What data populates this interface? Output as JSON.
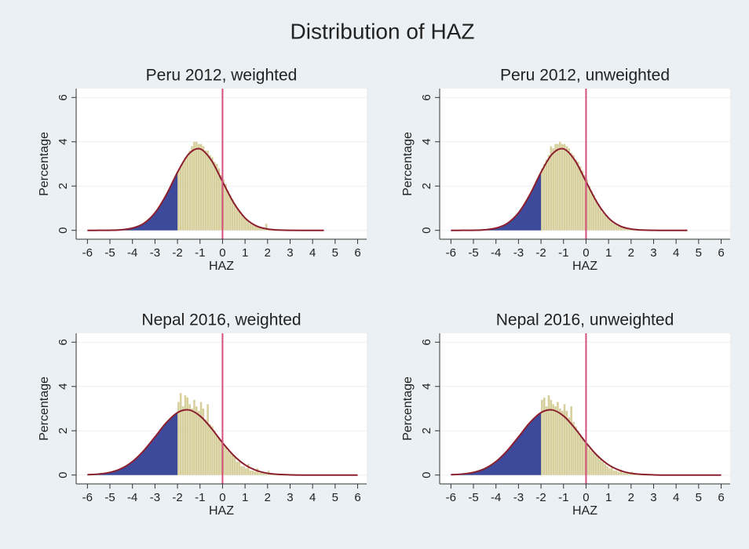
{
  "title": "Distribution of HAZ",
  "chart_data": [
    {
      "type": "histogram",
      "title": "Peru 2012, weighted",
      "xlabel": "HAZ",
      "ylabel": "Percentage",
      "xlim": [
        -6.5,
        6.4
      ],
      "ylim": [
        -0.4,
        6.4
      ],
      "xticks": [
        -6,
        -5,
        -4,
        -3,
        -2,
        -1,
        0,
        1,
        2,
        3,
        4,
        5,
        6
      ],
      "yticks": [
        0,
        2,
        4,
        6
      ],
      "grid": true,
      "color": "#d6cf9c",
      "bins": [
        -2,
        -1.9,
        -1.8,
        -1.7,
        -1.6,
        -1.5,
        -1.4,
        -1.3,
        -1.2,
        -1.1,
        -1,
        -0.9,
        -0.8,
        -0.7,
        -0.6,
        -0.5,
        -0.4,
        -0.3,
        -0.2,
        -0.1,
        0,
        0.1,
        0.2,
        0.3,
        0.4,
        0.5,
        0.6,
        0.7,
        0.8,
        0.9,
        1,
        1.1,
        1.2,
        1.3,
        1.4,
        1.5,
        1.6,
        1.7,
        1.8,
        1.9,
        2,
        2.1,
        2.2,
        2.3,
        2.4,
        2.5,
        2.6
      ],
      "values": [
        2.7,
        2.9,
        3.1,
        3.3,
        3.4,
        3.6,
        3.8,
        4.0,
        4.0,
        3.9,
        3.9,
        3.8,
        3.6,
        3.6,
        3.4,
        3.3,
        3.1,
        3.0,
        2.8,
        2.5,
        2.3,
        2.1,
        1.8,
        1.6,
        1.4,
        1.2,
        1.0,
        0.9,
        0.7,
        0.6,
        0.5,
        0.4,
        0.3,
        0.25,
        0.2,
        0.15,
        0.12,
        0.1,
        0.08,
        0.3,
        0.05,
        0.04,
        0.03,
        0.02,
        0.02,
        0.01
      ],
      "curve": {
        "color": "#8b1f2e",
        "x": [
          -6,
          -5.5,
          -5,
          -4.5,
          -4,
          -3.5,
          -3,
          -2.5,
          -2,
          -1.5,
          -1,
          -0.5,
          0,
          0.5,
          1,
          1.5,
          2,
          2.5,
          3,
          3.5,
          4,
          4.5
        ],
        "values": [
          0,
          0.001,
          0.005,
          0.026,
          0.1,
          0.31,
          0.79,
          1.6,
          2.62,
          3.45,
          3.68,
          3.17,
          2.2,
          1.24,
          0.56,
          0.2,
          0.06,
          0.014,
          0.003,
          0,
          0,
          0
        ]
      },
      "shade_below": -2,
      "shade_color": "#3d4a9c",
      "ref_line": 0,
      "ref_color": "#d4507c"
    },
    {
      "type": "histogram",
      "title": "Peru 2012, unweighted",
      "xlabel": "HAZ",
      "ylabel": "Percentage",
      "xlim": [
        -6.5,
        6.4
      ],
      "ylim": [
        -0.4,
        6.4
      ],
      "xticks": [
        -6,
        -5,
        -4,
        -3,
        -2,
        -1,
        0,
        1,
        2,
        3,
        4,
        5,
        6
      ],
      "yticks": [
        0,
        2,
        4,
        6
      ],
      "grid": true,
      "color": "#d6cf9c",
      "bins": [
        -2,
        -1.9,
        -1.8,
        -1.7,
        -1.6,
        -1.5,
        -1.4,
        -1.3,
        -1.2,
        -1.1,
        -1,
        -0.9,
        -0.8,
        -0.7,
        -0.6,
        -0.5,
        -0.4,
        -0.3,
        -0.2,
        -0.1,
        0,
        0.1,
        0.2,
        0.3,
        0.4,
        0.5,
        0.6,
        0.7,
        0.8,
        0.9,
        1,
        1.1,
        1.2,
        1.3,
        1.4,
        1.5,
        1.6,
        1.7,
        1.8,
        1.9,
        2,
        2.1,
        2.2,
        2.3,
        2.4,
        2.5,
        2.6
      ],
      "values": [
        2.8,
        3.0,
        3.2,
        3.4,
        3.8,
        3.7,
        3.9,
        3.9,
        4.0,
        3.9,
        3.9,
        3.8,
        3.7,
        3.5,
        3.4,
        3.2,
        3.1,
        2.9,
        2.7,
        2.5,
        2.3,
        2.0,
        1.8,
        1.6,
        1.4,
        1.2,
        1.0,
        0.8,
        0.7,
        0.6,
        0.5,
        0.4,
        0.3,
        0.25,
        0.2,
        0.15,
        0.12,
        0.1,
        0.08,
        0.06,
        0.05,
        0.04,
        0.03,
        0.02,
        0.02,
        0.01
      ],
      "curve": {
        "color": "#8b1f2e",
        "x": [
          -6,
          -5.5,
          -5,
          -4.5,
          -4,
          -3.5,
          -3,
          -2.5,
          -2,
          -1.5,
          -1,
          -0.5,
          0,
          0.5,
          1,
          1.5,
          2,
          2.5,
          3,
          3.5,
          4,
          4.5
        ],
        "values": [
          0,
          0.001,
          0.005,
          0.026,
          0.1,
          0.31,
          0.79,
          1.6,
          2.62,
          3.45,
          3.68,
          3.17,
          2.2,
          1.24,
          0.56,
          0.2,
          0.06,
          0.014,
          0.003,
          0,
          0,
          0
        ]
      },
      "shade_below": -2,
      "shade_color": "#3d4a9c",
      "ref_line": 0,
      "ref_color": "#d4507c"
    },
    {
      "type": "histogram",
      "title": "Nepal 2016, weighted",
      "xlabel": "HAZ",
      "ylabel": "Percentage",
      "xlim": [
        -6.5,
        6.4
      ],
      "ylim": [
        -0.4,
        6.4
      ],
      "xticks": [
        -6,
        -5,
        -4,
        -3,
        -2,
        -1,
        0,
        1,
        2,
        3,
        4,
        5,
        6
      ],
      "yticks": [
        0,
        2,
        4,
        6
      ],
      "grid": true,
      "color": "#d6cf9c",
      "bins": [
        -2,
        -1.9,
        -1.8,
        -1.7,
        -1.6,
        -1.5,
        -1.4,
        -1.3,
        -1.2,
        -1.1,
        -1,
        -0.9,
        -0.8,
        -0.7,
        -0.6,
        -0.5,
        -0.4,
        -0.3,
        -0.2,
        -0.1,
        0,
        0.1,
        0.2,
        0.3,
        0.4,
        0.5,
        0.6,
        0.7,
        0.8,
        0.9,
        1,
        1.1,
        1.2,
        1.3,
        1.4,
        1.5,
        1.6,
        1.7,
        1.8,
        1.9,
        2,
        2.1,
        2.2,
        2.3,
        2.4,
        2.5,
        2.6,
        2.7,
        2.8,
        2.9,
        3
      ],
      "values": [
        3.3,
        3.7,
        3.1,
        3.6,
        3.5,
        3.2,
        3.0,
        3.4,
        3.1,
        2.9,
        3.3,
        3.0,
        2.5,
        3.2,
        2.3,
        2.2,
        2.0,
        1.8,
        1.7,
        1.5,
        1.4,
        1.3,
        1.1,
        1.0,
        0.9,
        0.8,
        0.6,
        0.6,
        0.4,
        0.4,
        0.3,
        0.5,
        0.2,
        0.2,
        0.15,
        0.3,
        0.1,
        0.1,
        0.08,
        0.06,
        0.2,
        0.05,
        0.04,
        0.03,
        0.03,
        0.02,
        0.02,
        0.01,
        0.01,
        0.01
      ],
      "curve": {
        "color": "#8b1f2e",
        "x": [
          -6,
          -5.5,
          -5,
          -4.5,
          -4,
          -3.5,
          -3,
          -2.5,
          -2,
          -1.5,
          -1,
          -0.5,
          0,
          0.5,
          1,
          1.5,
          2,
          2.5,
          3,
          3.5,
          4,
          4.5,
          5,
          5.5,
          6
        ],
        "values": [
          0.015,
          0.045,
          0.12,
          0.29,
          0.61,
          1.1,
          1.72,
          2.36,
          2.82,
          2.94,
          2.67,
          2.12,
          1.46,
          0.88,
          0.46,
          0.21,
          0.08,
          0.03,
          0.009,
          0,
          0,
          0,
          0,
          0,
          0
        ]
      },
      "shade_below": -2,
      "shade_color": "#3d4a9c",
      "ref_line": 0,
      "ref_color": "#d4507c"
    },
    {
      "type": "histogram",
      "title": "Nepal 2016, unweighted",
      "xlabel": "HAZ",
      "ylabel": "Percentage",
      "xlim": [
        -6.5,
        6.4
      ],
      "ylim": [
        -0.4,
        6.4
      ],
      "xticks": [
        -6,
        -5,
        -4,
        -3,
        -2,
        -1,
        0,
        1,
        2,
        3,
        4,
        5,
        6
      ],
      "yticks": [
        0,
        2,
        4,
        6
      ],
      "grid": true,
      "color": "#d6cf9c",
      "bins": [
        -2,
        -1.9,
        -1.8,
        -1.7,
        -1.6,
        -1.5,
        -1.4,
        -1.3,
        -1.2,
        -1.1,
        -1,
        -0.9,
        -0.8,
        -0.7,
        -0.6,
        -0.5,
        -0.4,
        -0.3,
        -0.2,
        -0.1,
        0,
        0.1,
        0.2,
        0.3,
        0.4,
        0.5,
        0.6,
        0.7,
        0.8,
        0.9,
        1,
        1.1,
        1.2,
        1.3,
        1.4,
        1.5,
        1.6,
        1.7,
        1.8,
        1.9,
        2,
        2.1,
        2.2,
        2.3,
        2.4,
        2.5,
        2.6,
        2.7,
        2.8,
        2.9,
        3
      ],
      "values": [
        3.4,
        3.5,
        3.1,
        3.6,
        3.4,
        3.2,
        3.1,
        3.3,
        3.0,
        2.9,
        3.2,
        2.9,
        2.6,
        3.1,
        2.4,
        2.2,
        2.0,
        1.8,
        1.7,
        1.5,
        1.4,
        1.2,
        1.1,
        1.0,
        0.9,
        0.8,
        0.7,
        0.6,
        0.5,
        0.4,
        0.3,
        0.4,
        0.2,
        0.2,
        0.15,
        0.25,
        0.1,
        0.1,
        0.08,
        0.06,
        0.15,
        0.05,
        0.04,
        0.03,
        0.03,
        0.02,
        0.02,
        0.01,
        0.01,
        0.01
      ],
      "curve": {
        "color": "#8b1f2e",
        "x": [
          -6,
          -5.5,
          -5,
          -4.5,
          -4,
          -3.5,
          -3,
          -2.5,
          -2,
          -1.5,
          -1,
          -0.5,
          0,
          0.5,
          1,
          1.5,
          2,
          2.5,
          3,
          3.5,
          4,
          4.5,
          5,
          5.5,
          6
        ],
        "values": [
          0.015,
          0.045,
          0.12,
          0.29,
          0.61,
          1.1,
          1.72,
          2.36,
          2.82,
          2.94,
          2.67,
          2.12,
          1.46,
          0.88,
          0.46,
          0.21,
          0.08,
          0.03,
          0.009,
          0,
          0,
          0,
          0,
          0,
          0
        ]
      },
      "shade_below": -2,
      "shade_color": "#3d4a9c",
      "ref_line": 0,
      "ref_color": "#d4507c"
    }
  ]
}
